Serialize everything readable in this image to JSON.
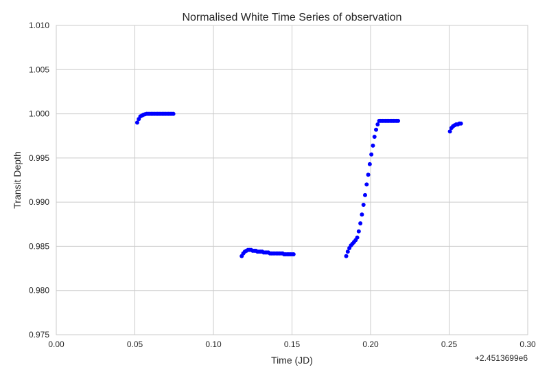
{
  "chart_data": {
    "type": "scatter",
    "title": "Normalised White Time Series of observation",
    "xlabel": "Time (JD)",
    "ylabel": "Transit Depth",
    "xlim": [
      0.0,
      0.3
    ],
    "ylim": [
      0.975,
      1.01
    ],
    "x_offset_label": "+2.4513699e6",
    "xticks": [
      0.0,
      0.05,
      0.1,
      0.15,
      0.2,
      0.25,
      0.3
    ],
    "xtick_labels": [
      "0.00",
      "0.05",
      "0.10",
      "0.15",
      "0.20",
      "0.25",
      "0.30"
    ],
    "yticks": [
      0.975,
      0.98,
      0.985,
      0.99,
      0.995,
      1.0,
      1.005,
      1.01
    ],
    "ytick_labels": [
      "0.975",
      "0.980",
      "0.985",
      "0.990",
      "0.995",
      "1.000",
      "1.005",
      "1.010"
    ],
    "grid": true,
    "marker_color": "#0000ff",
    "series": [
      {
        "x": [
          0.0515,
          0.0525,
          0.0535,
          0.0545,
          0.0555,
          0.0565,
          0.0575,
          0.0585,
          0.0595,
          0.0605,
          0.0615,
          0.0625,
          0.0635,
          0.0645,
          0.0655,
          0.0665,
          0.0675,
          0.0685,
          0.0695,
          0.0705,
          0.0715,
          0.0725,
          0.0735,
          0.0745,
          0.118,
          0.119,
          0.12,
          0.121,
          0.122,
          0.123,
          0.124,
          0.125,
          0.126,
          0.127,
          0.128,
          0.129,
          0.13,
          0.131,
          0.132,
          0.133,
          0.134,
          0.135,
          0.136,
          0.137,
          0.138,
          0.139,
          0.14,
          0.141,
          0.142,
          0.143,
          0.144,
          0.145,
          0.146,
          0.147,
          0.148,
          0.149,
          0.15,
          0.151,
          0.1845,
          0.1855,
          0.1865,
          0.1875,
          0.1885,
          0.1895,
          0.1905,
          0.1915,
          0.1925,
          0.1935,
          0.1945,
          0.1955,
          0.1965,
          0.1975,
          0.1985,
          0.1995,
          0.2005,
          0.2015,
          0.2025,
          0.2035,
          0.2045,
          0.2055,
          0.2065,
          0.2075,
          0.2085,
          0.2095,
          0.2105,
          0.2115,
          0.2125,
          0.2135,
          0.2145,
          0.2155,
          0.2165,
          0.2175,
          0.2505,
          0.2515,
          0.2525,
          0.2535,
          0.2545,
          0.2555,
          0.2565,
          0.2575
        ],
        "y": [
          0.999,
          0.9994,
          0.9997,
          0.9998,
          0.9999,
          0.99995,
          1.0,
          1.0,
          1.0,
          1.0,
          1.0,
          1.0,
          1.0,
          1.0,
          1.0,
          1.0,
          1.0,
          1.0,
          1.0,
          1.0,
          1.0,
          1.0,
          1.0,
          1.0,
          0.9839,
          0.9842,
          0.9844,
          0.9845,
          0.9846,
          0.9846,
          0.9846,
          0.9845,
          0.9845,
          0.9845,
          0.9844,
          0.9844,
          0.9844,
          0.9844,
          0.9843,
          0.9843,
          0.9843,
          0.9843,
          0.9842,
          0.9842,
          0.9842,
          0.9842,
          0.9842,
          0.9842,
          0.9842,
          0.9842,
          0.9842,
          0.9841,
          0.9841,
          0.9841,
          0.9841,
          0.9841,
          0.9841,
          0.9841,
          0.9839,
          0.9844,
          0.9848,
          0.9851,
          0.9853,
          0.9855,
          0.9857,
          0.986,
          0.9867,
          0.9876,
          0.9886,
          0.9897,
          0.9908,
          0.992,
          0.9931,
          0.9943,
          0.9954,
          0.9964,
          0.9974,
          0.9982,
          0.9988,
          0.9992,
          0.9992,
          0.9992,
          0.9992,
          0.9992,
          0.9992,
          0.9992,
          0.9992,
          0.9992,
          0.9992,
          0.9992,
          0.9992,
          0.9992,
          0.998,
          0.9984,
          0.9986,
          0.9987,
          0.9988,
          0.9988,
          0.9989,
          0.9989
        ]
      }
    ]
  }
}
